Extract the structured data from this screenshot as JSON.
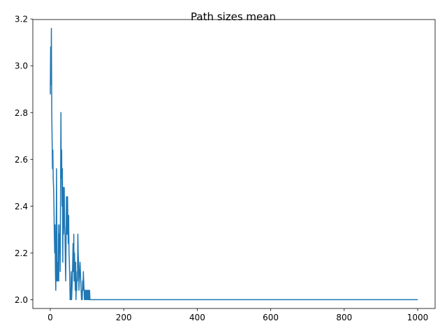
{
  "chart_data": {
    "type": "line",
    "title": "Path sizes mean",
    "xlabel": "",
    "ylabel": "",
    "xlim": [
      -47.5,
      1047.5
    ],
    "ylim": [
      1.9624,
      3.1976
    ],
    "xticks": [
      0,
      200,
      400,
      600,
      800,
      1000
    ],
    "xtick_labels": [
      "0",
      "200",
      "400",
      "600",
      "800",
      "1000"
    ],
    "yticks": [
      2.0,
      2.2,
      2.4,
      2.6,
      2.8,
      3.0,
      3.2
    ],
    "ytick_labels": [
      "2.0",
      "2.2",
      "2.4",
      "2.6",
      "2.8",
      "3.0",
      "3.2"
    ],
    "grid": false,
    "legend": "none",
    "line_color": "#1f77b4",
    "series": [
      {
        "x": [
          0,
          1,
          2,
          3,
          4,
          5,
          6,
          7,
          8,
          9,
          10,
          11,
          12,
          13,
          14,
          15,
          16,
          17,
          18,
          19,
          20,
          21,
          22,
          23,
          24,
          25,
          26,
          27,
          28,
          29,
          30,
          31,
          32,
          33,
          34,
          35,
          36,
          37,
          38,
          39,
          40,
          41,
          42,
          43,
          44,
          45,
          46,
          47,
          48,
          49,
          50,
          51,
          52,
          53,
          54,
          55,
          56,
          57,
          58,
          59,
          60,
          61,
          62,
          63,
          64,
          65,
          66,
          67,
          68,
          69,
          70,
          71,
          72,
          73,
          74,
          75,
          76,
          77,
          78,
          79,
          80,
          81,
          82,
          83,
          84,
          85,
          86,
          87,
          88,
          89,
          90,
          91,
          92,
          93,
          94,
          95,
          96,
          97,
          98,
          99,
          100,
          101,
          102,
          103,
          104,
          105,
          106,
          107,
          108,
          109,
          110,
          999
        ],
        "y": [
          2.88,
          3.08,
          2.92,
          3.16,
          2.8,
          2.68,
          2.56,
          2.64,
          2.52,
          2.48,
          2.4,
          2.28,
          2.2,
          2.32,
          2.12,
          2.04,
          2.24,
          2.56,
          2.08,
          2.12,
          2.16,
          2.08,
          2.32,
          2.08,
          2.28,
          2.2,
          2.32,
          2.12,
          2.48,
          2.8,
          2.52,
          2.64,
          2.4,
          2.56,
          2.16,
          2.48,
          2.28,
          2.36,
          2.48,
          2.32,
          2.28,
          2.16,
          2.08,
          2.24,
          2.44,
          2.36,
          2.28,
          2.44,
          2.32,
          2.24,
          2.36,
          2.2,
          2.16,
          2.08,
          2.0,
          2.04,
          2.0,
          2.12,
          2.0,
          2.04,
          2.08,
          2.16,
          2.24,
          2.12,
          2.28,
          2.08,
          2.2,
          2.12,
          2.04,
          2.16,
          2.0,
          2.08,
          2.04,
          2.12,
          2.08,
          2.28,
          2.2,
          2.16,
          2.04,
          2.08,
          2.12,
          2.16,
          2.12,
          2.08,
          2.04,
          2.0,
          2.04,
          2.0,
          2.08,
          2.04,
          2.12,
          2.08,
          2.04,
          2.0,
          2.04,
          2.0,
          2.04,
          2.0,
          2.04,
          2.0,
          2.04,
          2.04,
          2.0,
          2.04,
          2.0,
          2.04,
          2.0,
          2.04,
          2.0,
          2.0,
          2.0,
          2.0
        ]
      }
    ]
  }
}
